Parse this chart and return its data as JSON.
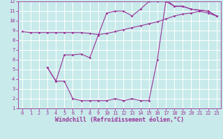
{
  "line1_x": [
    0,
    1,
    2,
    3,
    4,
    5,
    6,
    7,
    8,
    9,
    10,
    11,
    12,
    13,
    14,
    15,
    16,
    17,
    18,
    19,
    20,
    21,
    22,
    23
  ],
  "line1_y": [
    8.9,
    8.8,
    8.8,
    8.8,
    8.8,
    8.8,
    8.8,
    8.8,
    8.7,
    8.6,
    8.7,
    8.9,
    9.1,
    9.3,
    9.5,
    9.7,
    9.9,
    10.2,
    10.5,
    10.7,
    10.8,
    11.0,
    10.8,
    10.5
  ],
  "line2_x": [
    3,
    4,
    5,
    6,
    7,
    8,
    9,
    10,
    11,
    12,
    13,
    14,
    15,
    16,
    17,
    18,
    19,
    20,
    21,
    22,
    23
  ],
  "line2_y": [
    5.2,
    3.8,
    6.5,
    6.5,
    6.6,
    6.2,
    8.5,
    10.8,
    11.0,
    11.0,
    10.5,
    11.2,
    12.0,
    12.0,
    12.2,
    11.5,
    11.5,
    11.2,
    11.1,
    11.0,
    10.5
  ],
  "line3_x": [
    3,
    4,
    5,
    6,
    7,
    8,
    9,
    10,
    11,
    12,
    13,
    14,
    15,
    16,
    17,
    18,
    19,
    20,
    21,
    22,
    23
  ],
  "line3_y": [
    5.2,
    3.8,
    3.8,
    2.0,
    1.8,
    1.8,
    1.8,
    1.8,
    2.0,
    1.8,
    2.0,
    1.8,
    1.8,
    6.0,
    12.0,
    11.5,
    11.5,
    11.2,
    11.1,
    11.0,
    10.5
  ],
  "color": "#993399",
  "bg_color": "#c8eaea",
  "grid_color": "#ffffff",
  "xlabel": "Windchill (Refroidissement éolien,°C)",
  "xlim": [
    -0.5,
    23.5
  ],
  "ylim": [
    1,
    12
  ],
  "xticks": [
    0,
    1,
    2,
    3,
    4,
    5,
    6,
    7,
    8,
    9,
    10,
    11,
    12,
    13,
    14,
    15,
    16,
    17,
    18,
    19,
    20,
    21,
    22,
    23
  ],
  "yticks": [
    1,
    2,
    3,
    4,
    5,
    6,
    7,
    8,
    9,
    10,
    11,
    12
  ],
  "tick_fontsize": 5.0,
  "xlabel_fontsize": 6.0
}
